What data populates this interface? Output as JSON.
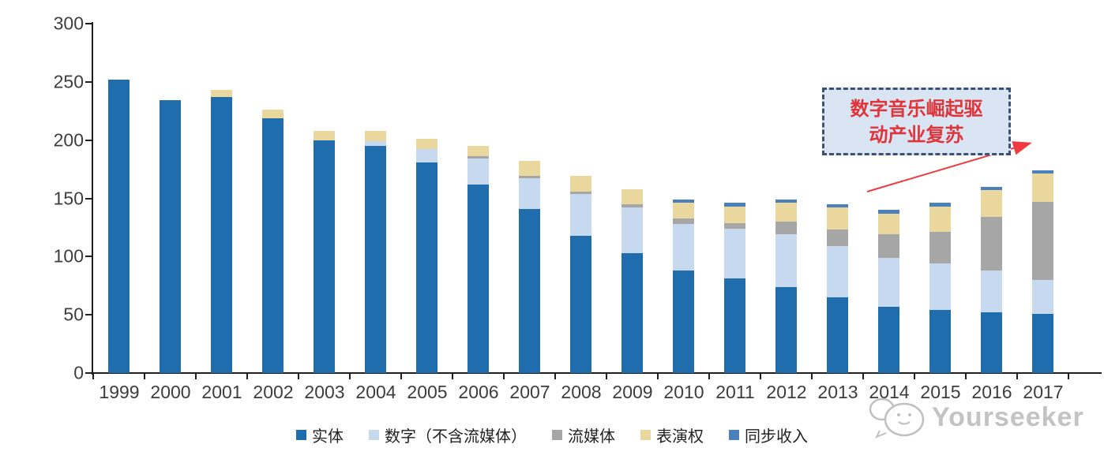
{
  "chart_data": {
    "type": "bar",
    "stacked": true,
    "title": "",
    "xlabel": "",
    "ylabel": "",
    "categories": [
      "1999",
      "2000",
      "2001",
      "2002",
      "2003",
      "2004",
      "2005",
      "2006",
      "2007",
      "2008",
      "2009",
      "2010",
      "2011",
      "2012",
      "2013",
      "2014",
      "2015",
      "2016",
      "2017"
    ],
    "series": [
      {
        "name": "实体",
        "color": "#1f6dad",
        "values": [
          252,
          234,
          237,
          219,
          200,
          195,
          181,
          162,
          141,
          118,
          103,
          88,
          81,
          74,
          65,
          57,
          54,
          52,
          51
        ]
      },
      {
        "name": "数字（不含流媒体）",
        "color": "#c7d9ef",
        "values": [
          0,
          0,
          0,
          0,
          0,
          4,
          11,
          22,
          26,
          36,
          39,
          40,
          43,
          45,
          44,
          42,
          40,
          36,
          29
        ]
      },
      {
        "name": "流媒体",
        "color": "#a6a6a6",
        "values": [
          0,
          0,
          0,
          0,
          0,
          0,
          0,
          2,
          2,
          2,
          3,
          5,
          5,
          11,
          14,
          20,
          27,
          46,
          67
        ]
      },
      {
        "name": "表演权",
        "color": "#e9d79e",
        "values": [
          0,
          0,
          6,
          7,
          8,
          9,
          9,
          9,
          13,
          13,
          13,
          13,
          14,
          16,
          19,
          18,
          22,
          23,
          24
        ]
      },
      {
        "name": "同步收入",
        "color": "#4a80bc",
        "values": [
          0,
          0,
          0,
          0,
          0,
          0,
          0,
          0,
          0,
          0,
          0,
          3,
          3,
          3,
          3,
          3,
          3,
          3,
          3
        ]
      }
    ],
    "ylim": [
      0,
      300
    ],
    "y_ticks": [
      0,
      50,
      100,
      150,
      200,
      250,
      300
    ],
    "grid": false,
    "legend_position": "bottom"
  },
  "annotation": {
    "line1": "数字音乐崛起驱",
    "line2": "动产业复苏",
    "full_text": "数字音乐崛起驱动产业复苏",
    "box_fill": "#dae5f3",
    "border_color": "#3c5078",
    "text_color": "#e0343b",
    "arrow_color": "#ee3a40"
  },
  "watermark": {
    "text": "Yourseeker"
  }
}
